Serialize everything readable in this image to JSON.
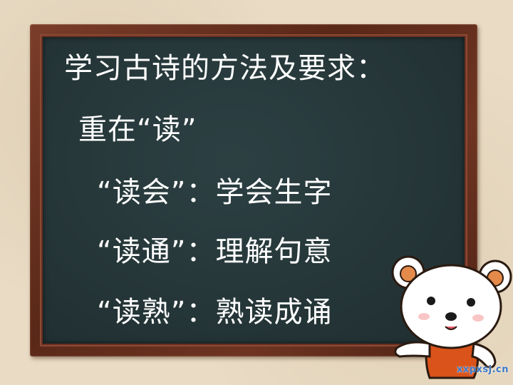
{
  "slide": {
    "title": "学习古诗的方法及要求：",
    "subtitle": "重在“读”",
    "items": [
      {
        "label": "“读会”：",
        "text": "学会生字"
      },
      {
        "label": "“读通”：",
        "text": "理解句意"
      },
      {
        "label": "“读熟”：",
        "text": "熟读成诵"
      }
    ],
    "watermark": "xxpxsj.cn"
  },
  "colors": {
    "board": "#26373a",
    "frame": "#6a2f1f",
    "background": "#e9dbc4",
    "text": "#ffffff",
    "bear_shirt": "#d9531a",
    "watermark": "#3b78c8"
  },
  "icons": {
    "mascot": "bear-mascot-icon"
  }
}
